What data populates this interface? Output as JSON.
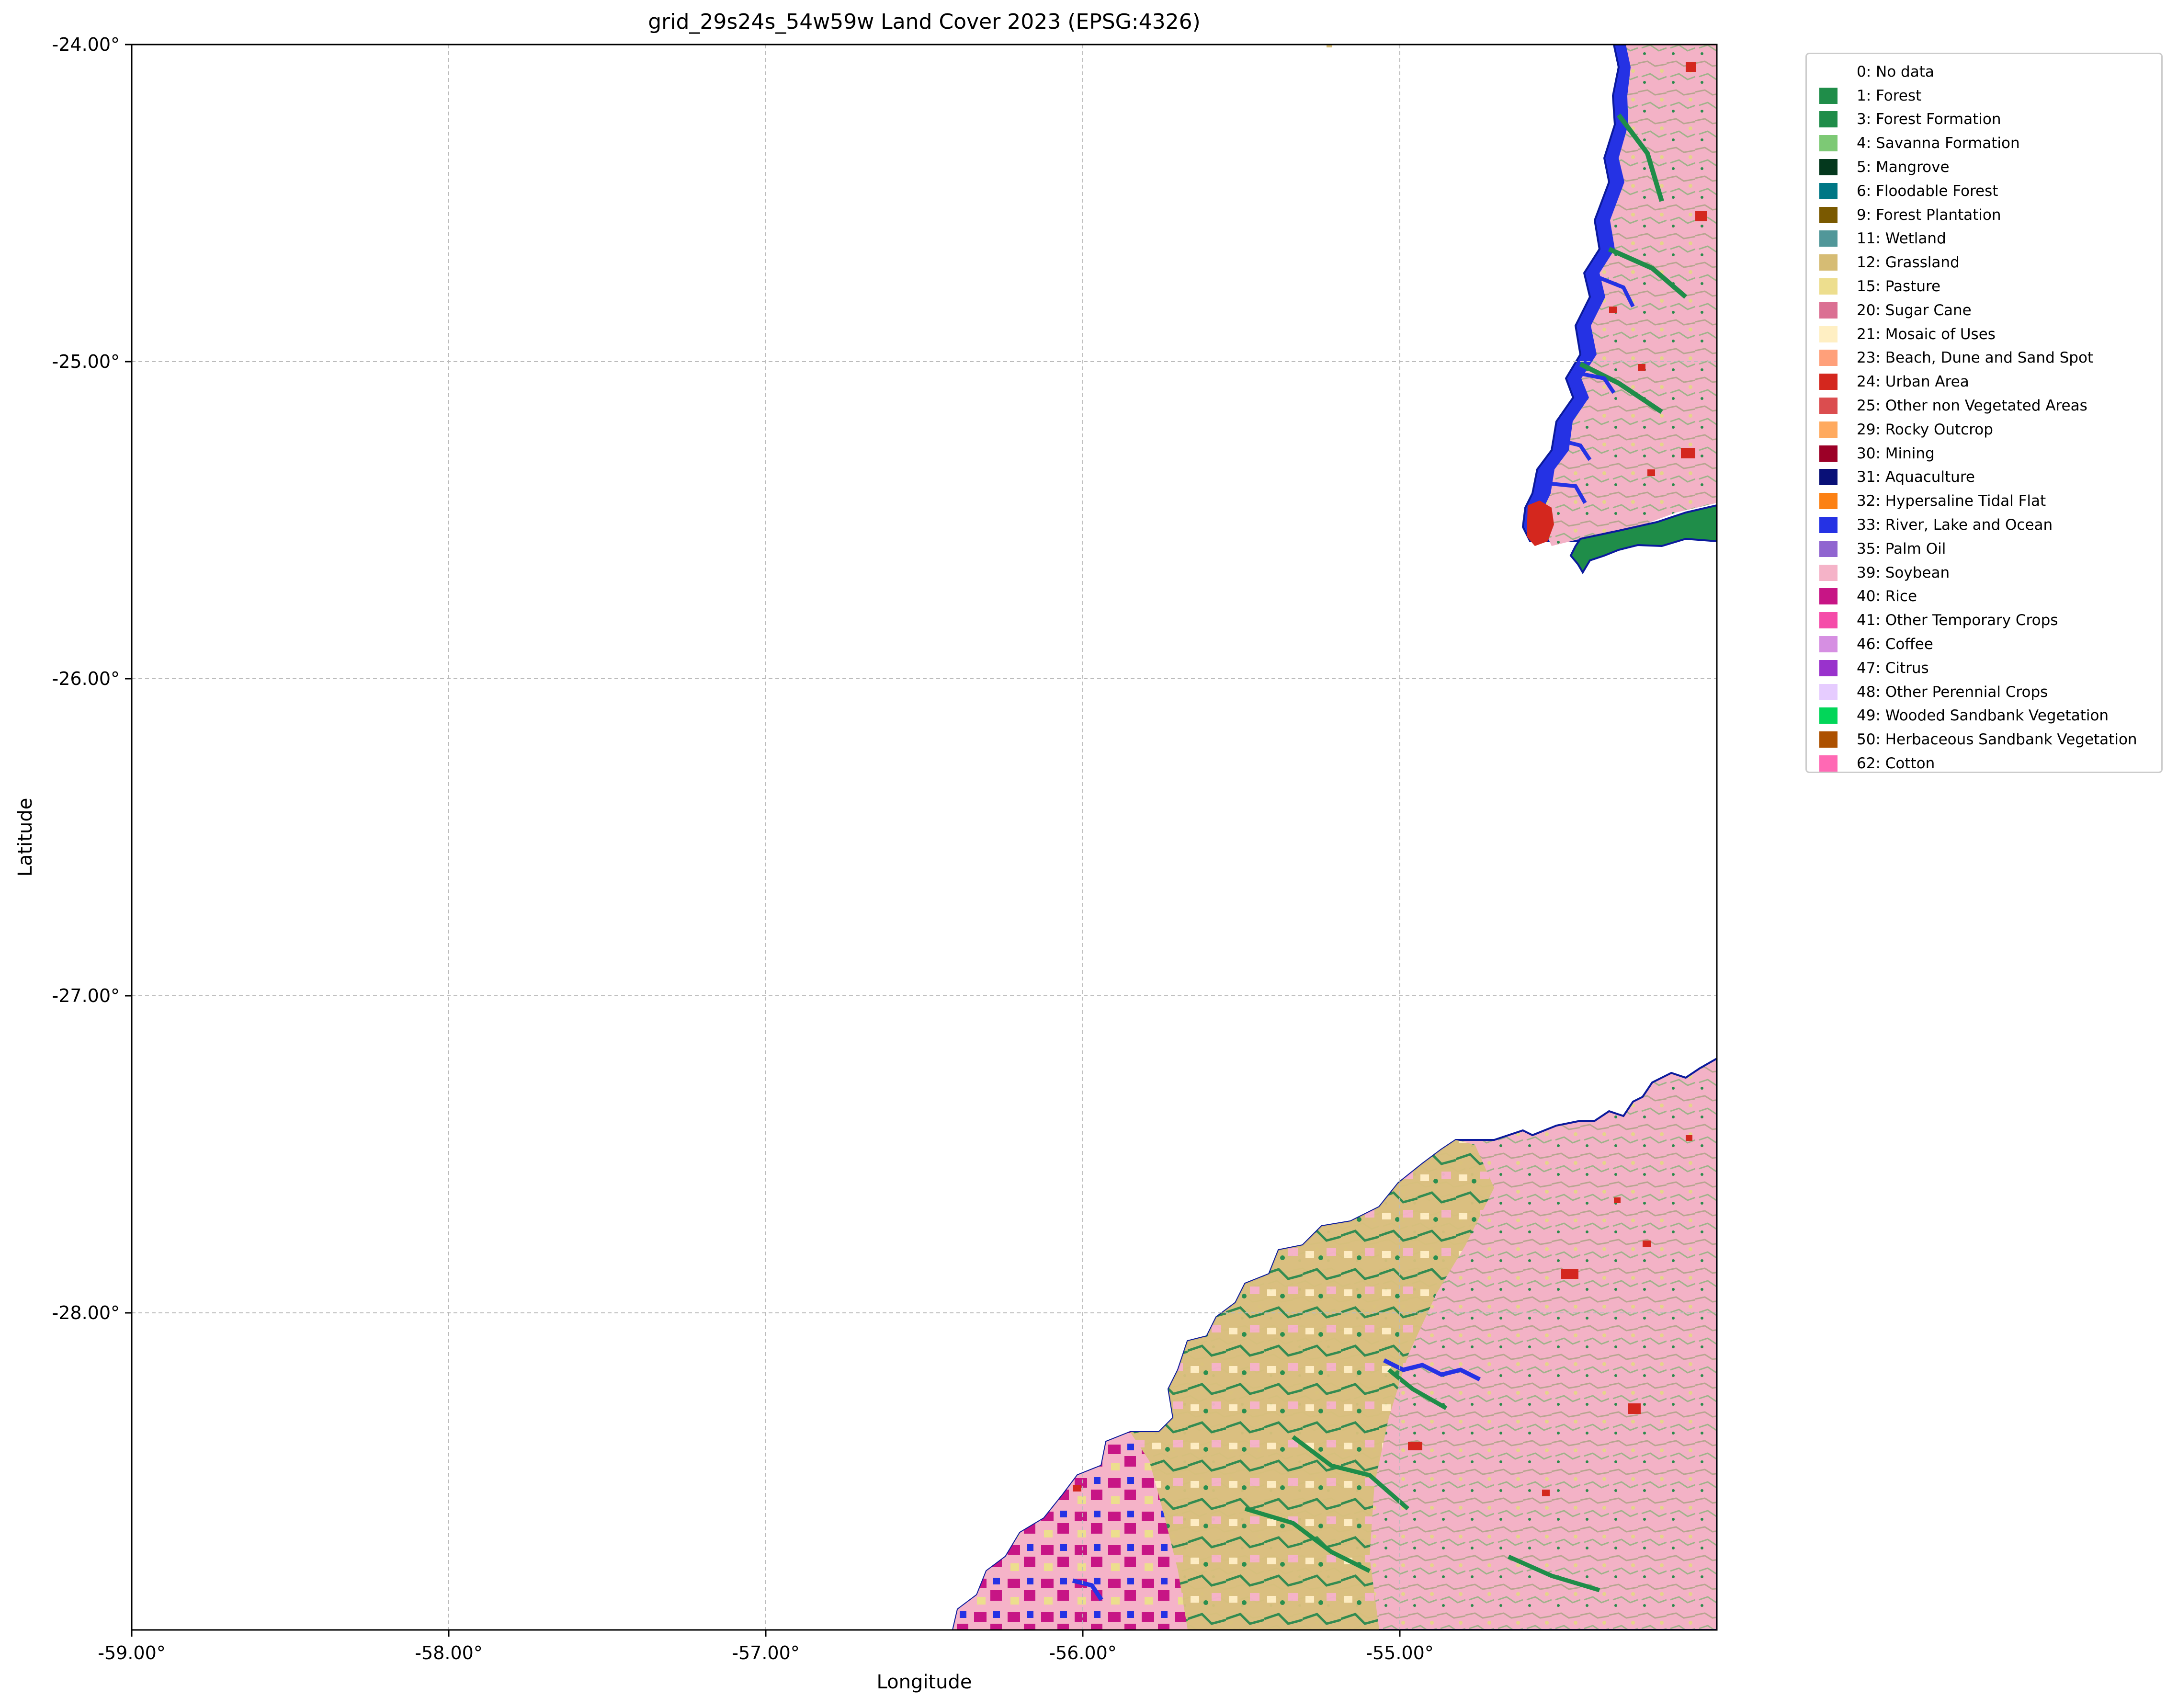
{
  "title": "grid_29s24s_54w59w Land Cover 2023 (EPSG:4326)",
  "x_axis": {
    "label": "Longitude",
    "range": [
      -59.0,
      -54.0
    ],
    "ticks": [
      -59.0,
      -58.0,
      -57.0,
      -56.0,
      -55.0
    ],
    "tick_labels": [
      "-59.00°",
      "-58.00°",
      "-57.00°",
      "-56.00°",
      "-55.00°"
    ]
  },
  "y_axis": {
    "label": "Latitude",
    "range": [
      -29.0,
      -24.0
    ],
    "ticks": [
      -24.0,
      -25.0,
      -26.0,
      -27.0,
      -28.0
    ],
    "tick_labels": [
      "-24.00°",
      "-25.00°",
      "-26.00°",
      "-27.00°",
      "-28.00°"
    ]
  },
  "grid": true,
  "legend": {
    "placement": "outside-right",
    "items": [
      {
        "label": "0: No data",
        "color": "#ffffff"
      },
      {
        "label": "1: Forest",
        "color": "#1f8d49"
      },
      {
        "label": "3: Forest Formation",
        "color": "#1f8d49"
      },
      {
        "label": "4: Savanna Formation",
        "color": "#7dc975"
      },
      {
        "label": "5: Mangrove",
        "color": "#04381d"
      },
      {
        "label": "6: Floodable Forest",
        "color": "#007785"
      },
      {
        "label": "9: Forest Plantation",
        "color": "#7a5900"
      },
      {
        "label": "11: Wetland",
        "color": "#519799"
      },
      {
        "label": "12: Grassland",
        "color": "#d6bc74"
      },
      {
        "label": "15: Pasture",
        "color": "#edde8e"
      },
      {
        "label": "20: Sugar Cane",
        "color": "#db7093"
      },
      {
        "label": "21: Mosaic of Uses",
        "color": "#ffefc3"
      },
      {
        "label": "23: Beach, Dune and Sand Spot",
        "color": "#ffa07a"
      },
      {
        "label": "24: Urban Area",
        "color": "#d4271e"
      },
      {
        "label": "25: Other non Vegetated Areas",
        "color": "#db4d4f"
      },
      {
        "label": "29: Rocky Outcrop",
        "color": "#ffaa5f"
      },
      {
        "label": "30: Mining",
        "color": "#9c0027"
      },
      {
        "label": "31: Aquaculture",
        "color": "#091077"
      },
      {
        "label": "32: Hypersaline Tidal Flat",
        "color": "#fc8114"
      },
      {
        "label": "33: River, Lake and Ocean",
        "color": "#2532e4"
      },
      {
        "label": "35: Palm Oil",
        "color": "#9065d0"
      },
      {
        "label": "39: Soybean",
        "color": "#f5b3c8"
      },
      {
        "label": "40: Rice",
        "color": "#c71585"
      },
      {
        "label": "41: Other Temporary Crops",
        "color": "#f54ca9"
      },
      {
        "label": "46: Coffee",
        "color": "#d68fe2"
      },
      {
        "label": "47: Citrus",
        "color": "#9932cc"
      },
      {
        "label": "48: Other Perennial Crops",
        "color": "#e6ccff"
      },
      {
        "label": "49: Wooded Sandbank Vegetation",
        "color": "#02d659"
      },
      {
        "label": "50: Herbaceous Sandbank Vegetation",
        "color": "#ad5100"
      },
      {
        "label": "62: Cotton",
        "color": "#ff69b4"
      }
    ]
  }
}
